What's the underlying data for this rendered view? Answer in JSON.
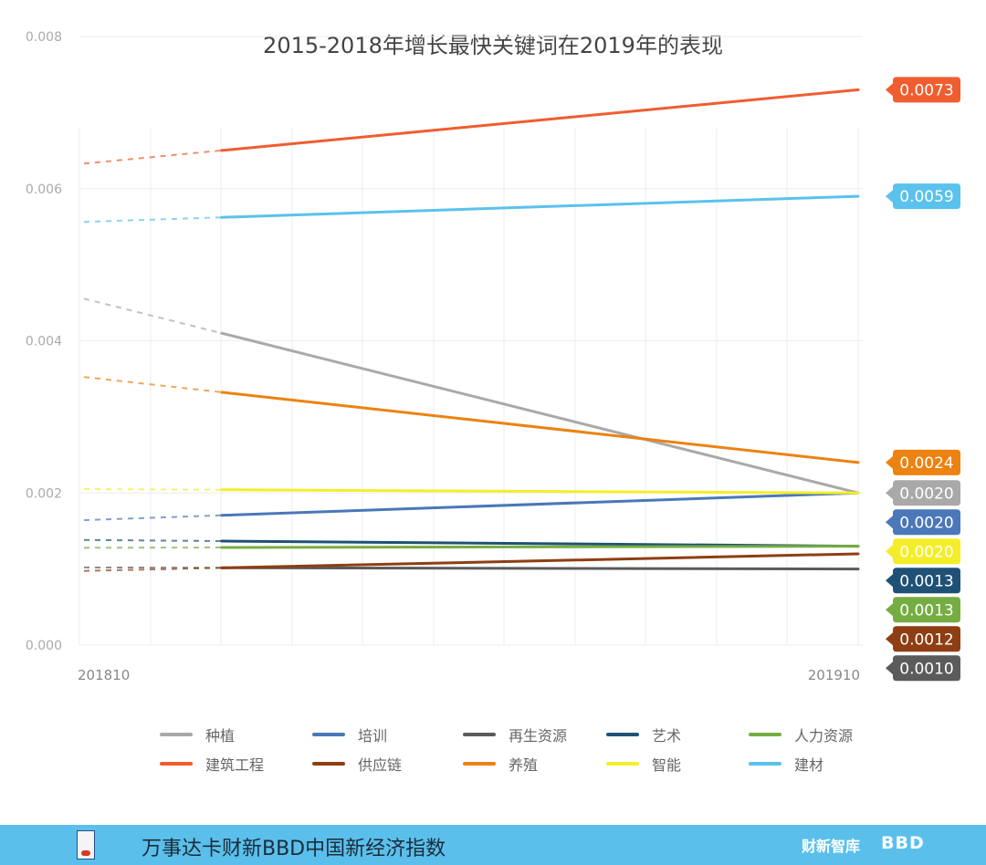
{
  "chart_data": {
    "type": "line",
    "title": "2015-2018年增长最快关键词在2019年的表现",
    "categories": [
      "201810",
      "201910"
    ],
    "ylim": [
      0,
      0.008
    ],
    "yticks": [
      "0.000",
      "0.002",
      "0.004",
      "0.006",
      "0.008"
    ],
    "series": [
      {
        "name": "种植",
        "color": "#a9a9a9",
        "values": [
          0.0045,
          0.002
        ],
        "label": "0.0020"
      },
      {
        "name": "培训",
        "color": "#4a78b8",
        "values": [
          0.00165,
          0.002
        ],
        "label": "0.0020"
      },
      {
        "name": "再生资源",
        "color": "#5b5b5b",
        "values": [
          0.00102,
          0.001
        ],
        "label": "0.0010"
      },
      {
        "name": "艺术",
        "color": "#1f5177",
        "values": [
          0.00138,
          0.0013
        ],
        "label": "0.0013"
      },
      {
        "name": "人力资源",
        "color": "#76ad42",
        "values": [
          0.00128,
          0.0013
        ],
        "label": "0.0013"
      },
      {
        "name": "建筑工程",
        "color": "#f05d2e",
        "values": [
          0.00635,
          0.0073
        ],
        "label": "0.0073"
      },
      {
        "name": "供应链",
        "color": "#8e3e12",
        "values": [
          0.00098,
          0.0012
        ],
        "label": "0.0012"
      },
      {
        "name": "养殖",
        "color": "#ec8211",
        "values": [
          0.0035,
          0.0024
        ],
        "label": "0.0024"
      },
      {
        "name": "智能",
        "color": "#f4ee2a",
        "values": [
          0.00205,
          0.002
        ],
        "label": "0.0020"
      },
      {
        "name": "建材",
        "color": "#5ac2ec",
        "values": [
          0.00557,
          0.0059
        ],
        "label": "0.0059"
      }
    ]
  },
  "footer": {
    "title": "万事达卡财新BBD中国新经济指数",
    "brand_caixin": "财新智库",
    "brand_bbd": "BBD"
  }
}
